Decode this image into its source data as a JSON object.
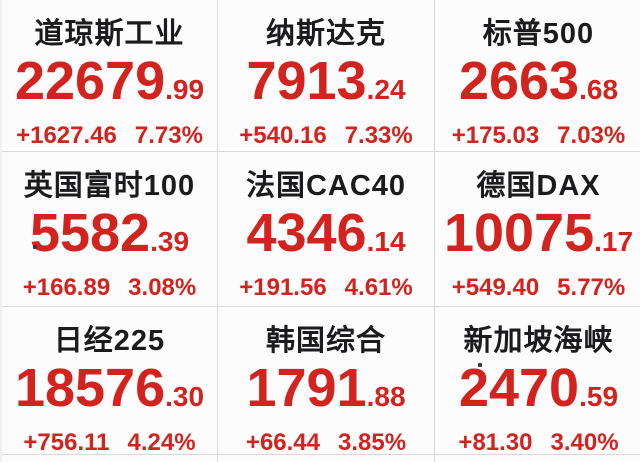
{
  "colors": {
    "accent_red": "#d2231e",
    "title_black": "#1b1b1d",
    "grid_line": "#d9d9d9",
    "background": "#fcfcfc"
  },
  "indices": [
    {
      "name": "道琼斯工业",
      "price_int": "22679",
      "price_dec": ".99",
      "change": "+1627.46",
      "pct": "7.73%"
    },
    {
      "name": "纳斯达克",
      "price_int": "7913",
      "price_dec": ".24",
      "change": "+540.16",
      "pct": "7.33%"
    },
    {
      "name": "标普500",
      "price_int": "2663",
      "price_dec": ".68",
      "change": "+175.03",
      "pct": "7.03%"
    },
    {
      "name": "英国富时100",
      "price_int": "5582",
      "price_dec": ".39",
      "change": "+166.89",
      "pct": "3.08%"
    },
    {
      "name": "法国CAC40",
      "price_int": "4346",
      "price_dec": ".14",
      "change": "+191.56",
      "pct": "4.61%"
    },
    {
      "name": "德国DAX",
      "price_int": "10075",
      "price_dec": ".17",
      "change": "+549.40",
      "pct": "5.77%"
    },
    {
      "name": "日经225",
      "price_int": "18576",
      "price_dec": ".30",
      "change": "+756.11",
      "pct": "4.24%"
    },
    {
      "name": "韩国综合",
      "price_int": "1791",
      "price_dec": ".88",
      "change": "+66.44",
      "pct": "3.85%"
    },
    {
      "name": "新加坡海峡",
      "price_int": "2470",
      "price_dec": ".59",
      "change": "+81.30",
      "pct": "3.40%"
    }
  ]
}
